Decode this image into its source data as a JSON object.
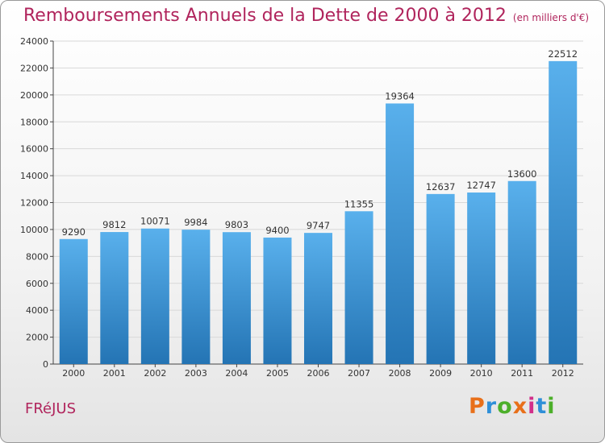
{
  "title": "Remboursements Annuels de la Dette de 2000 à 2012",
  "unit": "(en milliers d'€)",
  "city": "FRéJUS",
  "logo": {
    "text": "Proxiti",
    "colors": [
      "#e8701a",
      "#2f8fd8",
      "#4caf2a",
      "#e8701a",
      "#d22f8a",
      "#2f8fd8",
      "#4caf2a"
    ]
  },
  "colors": {
    "bar_top": "#59b0ec",
    "bar_bottom": "#2474b4",
    "title": "#b0245c",
    "grid": "#d8d8d8"
  },
  "chart_data": {
    "type": "bar",
    "title": "Remboursements Annuels de la Dette de 2000 à 2012",
    "xlabel": "",
    "ylabel": "",
    "ylim": [
      0,
      24000
    ],
    "yticks": [
      0,
      2000,
      4000,
      6000,
      8000,
      10000,
      12000,
      14000,
      16000,
      18000,
      20000,
      22000,
      24000
    ],
    "grid": true,
    "categories": [
      "2000",
      "2001",
      "2002",
      "2003",
      "2004",
      "2005",
      "2006",
      "2007",
      "2008",
      "2009",
      "2010",
      "2011",
      "2012"
    ],
    "values": [
      9290,
      9812,
      10071,
      9984,
      9803,
      9400,
      9747,
      11355,
      19364,
      12637,
      12747,
      13600,
      22512
    ]
  }
}
